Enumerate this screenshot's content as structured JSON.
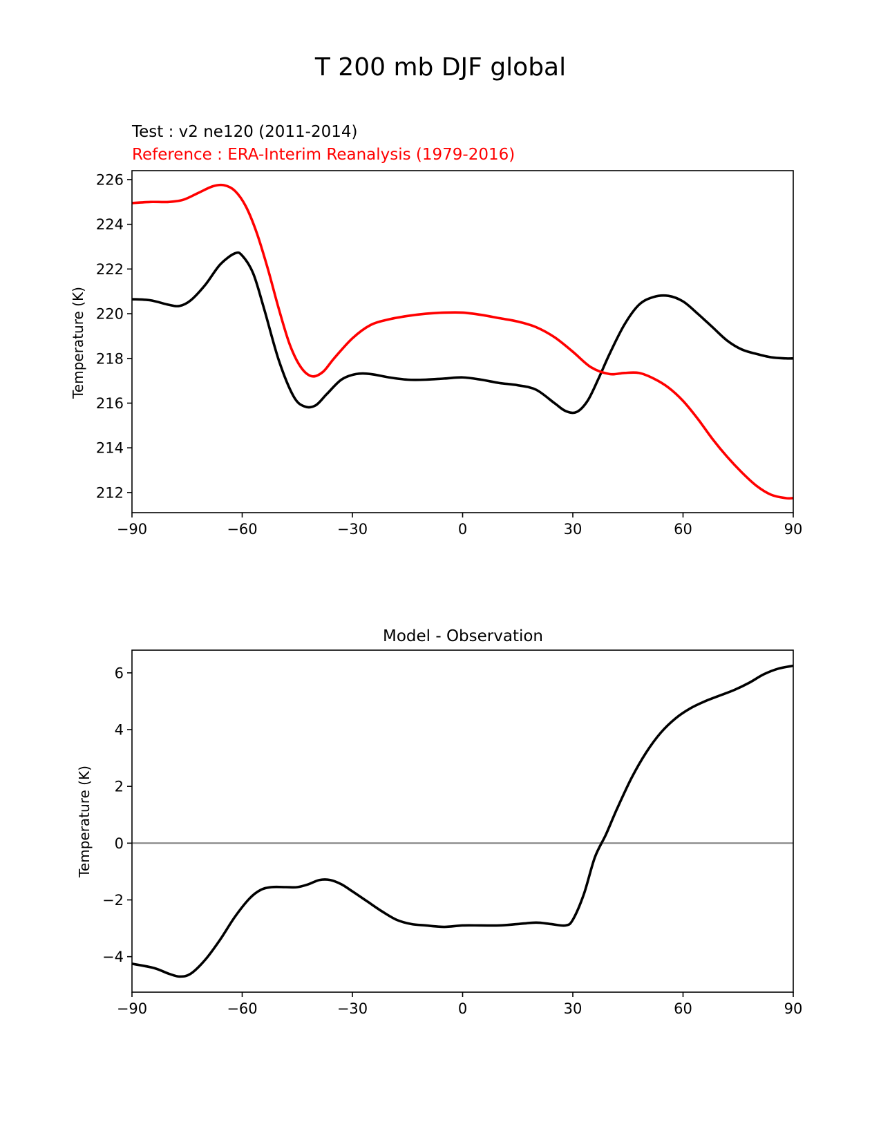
{
  "figure": {
    "title": "T 200 mb DJF global"
  },
  "chart_data": [
    {
      "type": "line",
      "title": "",
      "subtitle_test": "Test : v2 ne120 (2011-2014)",
      "subtitle_ref": "Reference : ERA-Interim Reanalysis (1979-2016)",
      "xlabel": "",
      "ylabel": "Temperature (K)",
      "xlim": [
        -90,
        90
      ],
      "ylim": [
        211.1,
        226.4
      ],
      "xticks": [
        -90,
        -60,
        -30,
        0,
        30,
        60,
        90
      ],
      "xtick_labels": [
        "−90",
        "−60",
        "−30",
        "0",
        "30",
        "60",
        "90"
      ],
      "yticks": [
        212,
        214,
        216,
        218,
        220,
        222,
        224,
        226
      ],
      "ytick_labels": [
        "212",
        "214",
        "216",
        "218",
        "220",
        "222",
        "224",
        "226"
      ],
      "series": [
        {
          "name": "Test : v2 ne120 (2011-2014)",
          "color": "#000000",
          "x": [
            -90,
            -85,
            -80,
            -77,
            -74,
            -70,
            -66,
            -62,
            -60,
            -57,
            -54,
            -50,
            -46,
            -43,
            -40,
            -37,
            -33,
            -29,
            -25,
            -20,
            -15,
            -10,
            -5,
            0,
            5,
            10,
            15,
            20,
            25,
            28,
            31,
            34,
            37,
            40,
            44,
            48,
            52,
            56,
            60,
            64,
            68,
            72,
            76,
            80,
            84,
            88,
            90
          ],
          "y": [
            220.65,
            220.6,
            220.4,
            220.35,
            220.6,
            221.3,
            222.2,
            222.7,
            222.6,
            221.8,
            220.2,
            217.9,
            216.3,
            215.85,
            215.9,
            216.4,
            217.05,
            217.3,
            217.3,
            217.15,
            217.05,
            217.05,
            217.1,
            217.15,
            217.05,
            216.9,
            216.8,
            216.6,
            216.0,
            215.65,
            215.6,
            216.1,
            217.1,
            218.2,
            219.5,
            220.4,
            220.75,
            220.8,
            220.55,
            220.0,
            219.4,
            218.8,
            218.4,
            218.2,
            218.05,
            218.0,
            218.0
          ]
        },
        {
          "name": "Reference : ERA-Interim Reanalysis (1979-2016)",
          "color": "#ff0000",
          "x": [
            -90,
            -85,
            -80,
            -76,
            -72,
            -68,
            -65,
            -62,
            -59,
            -56,
            -53,
            -50,
            -47,
            -44,
            -41,
            -38,
            -35,
            -30,
            -25,
            -20,
            -15,
            -10,
            -5,
            0,
            5,
            10,
            15,
            20,
            25,
            30,
            35,
            40,
            44,
            48,
            52,
            56,
            60,
            64,
            68,
            72,
            76,
            80,
            84,
            88,
            90
          ],
          "y": [
            224.95,
            225.0,
            225.0,
            225.1,
            225.4,
            225.7,
            225.75,
            225.5,
            224.8,
            223.6,
            222.0,
            220.2,
            218.6,
            217.6,
            217.2,
            217.4,
            218.0,
            218.9,
            219.5,
            219.75,
            219.9,
            220.0,
            220.05,
            220.05,
            219.95,
            219.8,
            219.65,
            219.4,
            218.95,
            218.3,
            217.6,
            217.3,
            217.35,
            217.35,
            217.1,
            216.7,
            216.1,
            215.3,
            214.4,
            213.6,
            212.9,
            212.3,
            211.9,
            211.75,
            211.75
          ]
        }
      ]
    },
    {
      "type": "line",
      "title": "Model - Observation",
      "xlabel": "",
      "ylabel": "Temperature (K)",
      "xlim": [
        -90,
        90
      ],
      "ylim": [
        -5.25,
        6.8
      ],
      "xticks": [
        -90,
        -60,
        -30,
        0,
        30,
        60,
        90
      ],
      "xtick_labels": [
        "−90",
        "−60",
        "−30",
        "0",
        "30",
        "60",
        "90"
      ],
      "yticks": [
        -4,
        -2,
        0,
        2,
        4,
        6
      ],
      "ytick_labels": [
        "−4",
        "−2",
        "0",
        "2",
        "4",
        "6"
      ],
      "zero_line": 0,
      "zero_line_color": "#808080",
      "series": [
        {
          "name": "Model - Observation",
          "color": "#000000",
          "x": [
            -90,
            -84,
            -80,
            -77,
            -74,
            -70,
            -66,
            -62,
            -58,
            -55,
            -52,
            -48,
            -45,
            -42,
            -39,
            -36,
            -33,
            -30,
            -26,
            -22,
            -18,
            -14,
            -10,
            -5,
            0,
            5,
            10,
            15,
            20,
            24,
            28,
            30,
            33,
            36,
            39,
            42,
            46,
            50,
            54,
            58,
            62,
            66,
            70,
            74,
            78,
            82,
            86,
            90
          ],
          "y": [
            -4.25,
            -4.4,
            -4.6,
            -4.7,
            -4.6,
            -4.1,
            -3.4,
            -2.6,
            -1.95,
            -1.65,
            -1.55,
            -1.55,
            -1.55,
            -1.45,
            -1.3,
            -1.3,
            -1.45,
            -1.7,
            -2.05,
            -2.4,
            -2.7,
            -2.85,
            -2.9,
            -2.95,
            -2.9,
            -2.9,
            -2.9,
            -2.85,
            -2.8,
            -2.85,
            -2.9,
            -2.7,
            -1.8,
            -0.5,
            0.3,
            1.2,
            2.3,
            3.2,
            3.9,
            4.4,
            4.75,
            5.0,
            5.2,
            5.4,
            5.65,
            5.95,
            6.15,
            6.25
          ]
        }
      ]
    }
  ]
}
